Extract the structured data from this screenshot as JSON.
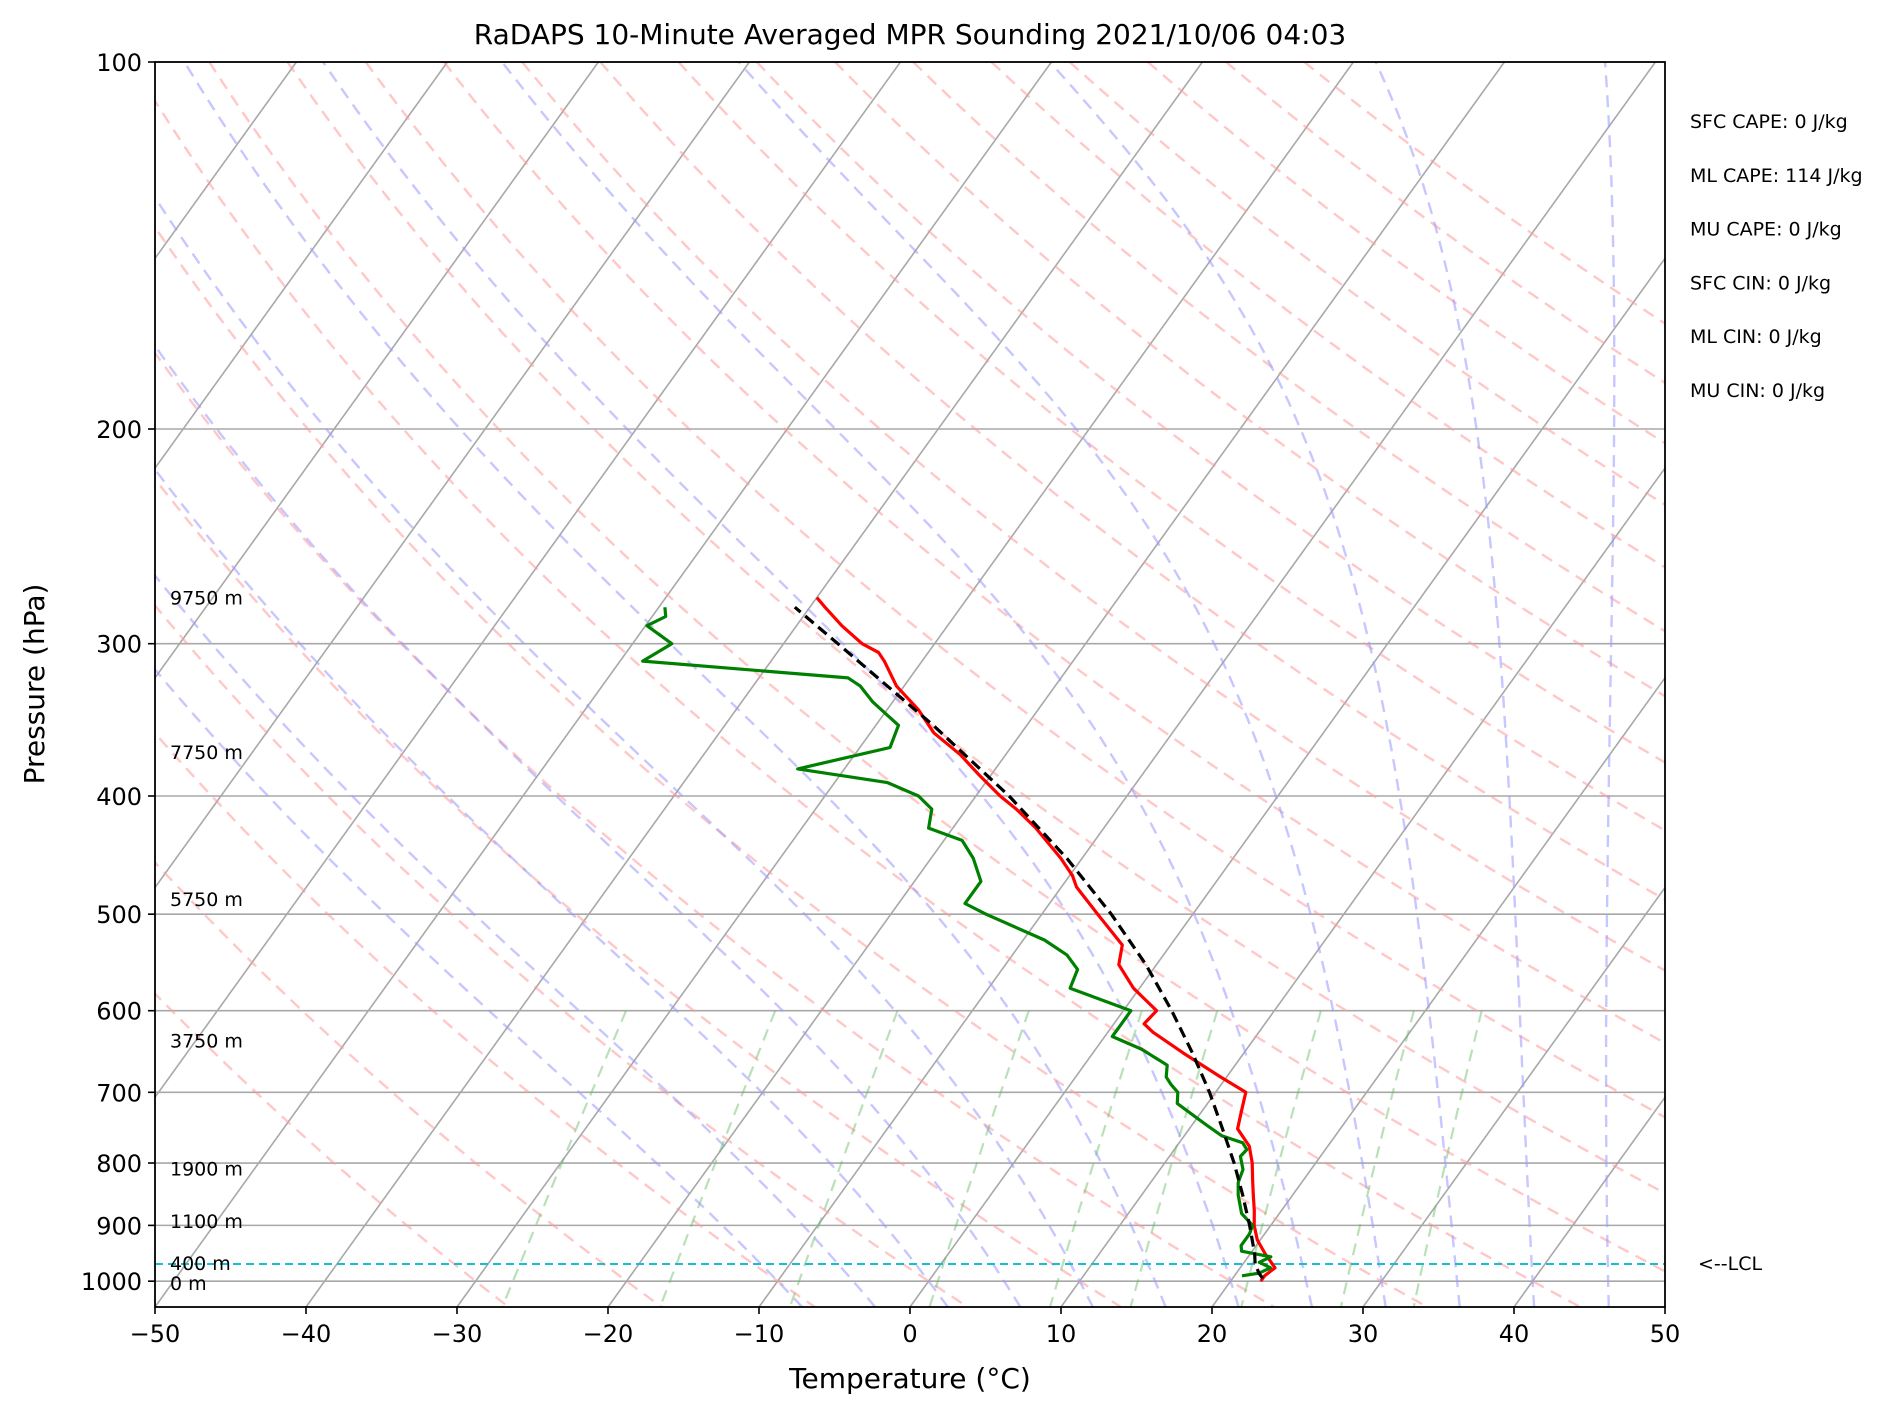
{
  "chart_data": {
    "type": "skew-t",
    "title": "RaDAPS 10-Minute Averaged MPR Sounding 2021/10/06 04:03",
    "xlabel": "Temperature (°C)",
    "ylabel": "Pressure (hPa)",
    "xlim": [
      -50,
      50
    ],
    "ylim": [
      1050,
      100
    ],
    "y_scale": "log",
    "x_ticks": [
      -50,
      -40,
      -30,
      -20,
      -10,
      0,
      10,
      20,
      30,
      40,
      50
    ],
    "x_tick_labels": [
      "−50",
      "−40",
      "−30",
      "−20",
      "−10",
      "0",
      "10",
      "20",
      "30",
      "40",
      "50"
    ],
    "y_ticks": [
      100,
      200,
      300,
      400,
      500,
      600,
      700,
      800,
      900,
      1000
    ],
    "y_tick_labels": [
      "100",
      "200",
      "300",
      "400",
      "500",
      "600",
      "700",
      "800",
      "900",
      "1000"
    ],
    "grid": true,
    "height_labels": [
      {
        "text": "9750 m",
        "pressure": 275
      },
      {
        "text": "7750 m",
        "pressure": 368
      },
      {
        "text": "5750 m",
        "pressure": 486
      },
      {
        "text": "3750 m",
        "pressure": 635
      },
      {
        "text": "1900 m",
        "pressure": 808
      },
      {
        "text": "1100 m",
        "pressure": 893
      },
      {
        "text": "400 m",
        "pressure": 966
      },
      {
        "text": "0 m",
        "pressure": 1003
      }
    ],
    "indices": [
      "SFC CAPE: 0 J/kg",
      "ML CAPE: 114 J/kg",
      "MU CAPE: 0 J/kg",
      "SFC CIN: 0 J/kg",
      "ML CIN: 0 J/kg",
      "MU CIN: 0 J/kg"
    ],
    "lcl": {
      "label": "<--LCL",
      "pressure": 968
    },
    "series": [
      {
        "role": "temperature",
        "color": "#ff0000",
        "points": [
          {
            "p": 1000,
            "t": 22.0
          },
          {
            "p": 990,
            "t": 22.0
          },
          {
            "p": 975,
            "t": 22.3
          },
          {
            "p": 950,
            "t": 21.0
          },
          {
            "p": 925,
            "t": 19.8
          },
          {
            "p": 900,
            "t": 18.9
          },
          {
            "p": 875,
            "t": 18.2
          },
          {
            "p": 850,
            "t": 17.4
          },
          {
            "p": 825,
            "t": 16.6
          },
          {
            "p": 800,
            "t": 15.8
          },
          {
            "p": 775,
            "t": 14.8
          },
          {
            "p": 750,
            "t": 13.2
          },
          {
            "p": 725,
            "t": 12.6
          },
          {
            "p": 700,
            "t": 12.0
          },
          {
            "p": 680,
            "t": 9.6
          },
          {
            "p": 650,
            "t": 6.0
          },
          {
            "p": 625,
            "t": 3.0
          },
          {
            "p": 615,
            "t": 2.0
          },
          {
            "p": 600,
            "t": 2.2
          },
          {
            "p": 575,
            "t": -0.4
          },
          {
            "p": 550,
            "t": -2.5
          },
          {
            "p": 530,
            "t": -3.2
          },
          {
            "p": 500,
            "t": -6.3
          },
          {
            "p": 475,
            "t": -9.0
          },
          {
            "p": 465,
            "t": -9.8
          },
          {
            "p": 450,
            "t": -11.4
          },
          {
            "p": 425,
            "t": -14.5
          },
          {
            "p": 410,
            "t": -16.7
          },
          {
            "p": 400,
            "t": -18.4
          },
          {
            "p": 385,
            "t": -20.7
          },
          {
            "p": 370,
            "t": -23.0
          },
          {
            "p": 355,
            "t": -25.8
          },
          {
            "p": 340,
            "t": -27.9
          },
          {
            "p": 325,
            "t": -30.5
          },
          {
            "p": 310,
            "t": -32.5
          },
          {
            "p": 305,
            "t": -33.3
          },
          {
            "p": 300,
            "t": -34.8
          },
          {
            "p": 290,
            "t": -37.0
          },
          {
            "p": 280,
            "t": -39.0
          },
          {
            "p": 275,
            "t": -40.0
          }
        ]
      },
      {
        "role": "dewpoint",
        "color": "#008000",
        "points": [
          {
            "p": 990,
            "t": 20.5
          },
          {
            "p": 985,
            "t": 21.5
          },
          {
            "p": 975,
            "t": 22.0
          },
          {
            "p": 965,
            "t": 21.0
          },
          {
            "p": 955,
            "t": 21.5
          },
          {
            "p": 945,
            "t": 19.3
          },
          {
            "p": 935,
            "t": 19.0
          },
          {
            "p": 915,
            "t": 19.0
          },
          {
            "p": 900,
            "t": 18.8
          },
          {
            "p": 880,
            "t": 17.5
          },
          {
            "p": 850,
            "t": 16.4
          },
          {
            "p": 830,
            "t": 15.8
          },
          {
            "p": 810,
            "t": 15.5
          },
          {
            "p": 790,
            "t": 14.7
          },
          {
            "p": 780,
            "t": 14.8
          },
          {
            "p": 770,
            "t": 14.2
          },
          {
            "p": 760,
            "t": 12.5
          },
          {
            "p": 745,
            "t": 11.0
          },
          {
            "p": 735,
            "t": 10.0
          },
          {
            "p": 715,
            "t": 8.0
          },
          {
            "p": 700,
            "t": 7.5
          },
          {
            "p": 690,
            "t": 6.7
          },
          {
            "p": 680,
            "t": 6.0
          },
          {
            "p": 665,
            "t": 5.5
          },
          {
            "p": 645,
            "t": 3.0
          },
          {
            "p": 630,
            "t": 0.5
          },
          {
            "p": 615,
            "t": 0.5
          },
          {
            "p": 600,
            "t": 0.5
          },
          {
            "p": 575,
            "t": -4.6
          },
          {
            "p": 555,
            "t": -5.0
          },
          {
            "p": 540,
            "t": -6.4
          },
          {
            "p": 525,
            "t": -8.6
          },
          {
            "p": 500,
            "t": -13.7
          },
          {
            "p": 490,
            "t": -15.6
          },
          {
            "p": 470,
            "t": -15.6
          },
          {
            "p": 450,
            "t": -17.2
          },
          {
            "p": 435,
            "t": -18.8
          },
          {
            "p": 425,
            "t": -21.6
          },
          {
            "p": 410,
            "t": -22.3
          },
          {
            "p": 400,
            "t": -23.8
          },
          {
            "p": 390,
            "t": -26.5
          },
          {
            "p": 380,
            "t": -33.1
          },
          {
            "p": 365,
            "t": -28.0
          },
          {
            "p": 350,
            "t": -28.5
          },
          {
            "p": 335,
            "t": -31.3
          },
          {
            "p": 325,
            "t": -32.9
          },
          {
            "p": 320,
            "t": -34.1
          },
          {
            "p": 310,
            "t": -48.5
          },
          {
            "p": 300,
            "t": -47.4
          },
          {
            "p": 290,
            "t": -49.9
          },
          {
            "p": 285,
            "t": -49.1
          },
          {
            "p": 280,
            "t": -49.6
          }
        ]
      },
      {
        "role": "parcel",
        "color": "#000000",
        "style": "dashed",
        "points": [
          {
            "p": 995,
            "t": 22.0
          },
          {
            "p": 985,
            "t": 21.5
          },
          {
            "p": 968,
            "t": 20.8
          },
          {
            "p": 950,
            "t": 20.3
          },
          {
            "p": 900,
            "t": 18.6
          },
          {
            "p": 850,
            "t": 16.7
          },
          {
            "p": 800,
            "t": 14.6
          },
          {
            "p": 750,
            "t": 12.2
          },
          {
            "p": 700,
            "t": 9.6
          },
          {
            "p": 650,
            "t": 6.6
          },
          {
            "p": 600,
            "t": 3.2
          },
          {
            "p": 550,
            "t": -0.7
          },
          {
            "p": 500,
            "t": -5.4
          },
          {
            "p": 450,
            "t": -11.0
          },
          {
            "p": 400,
            "t": -17.8
          },
          {
            "p": 350,
            "t": -26.2
          },
          {
            "p": 300,
            "t": -36.4
          },
          {
            "p": 280,
            "t": -41.0
          }
        ]
      }
    ]
  }
}
